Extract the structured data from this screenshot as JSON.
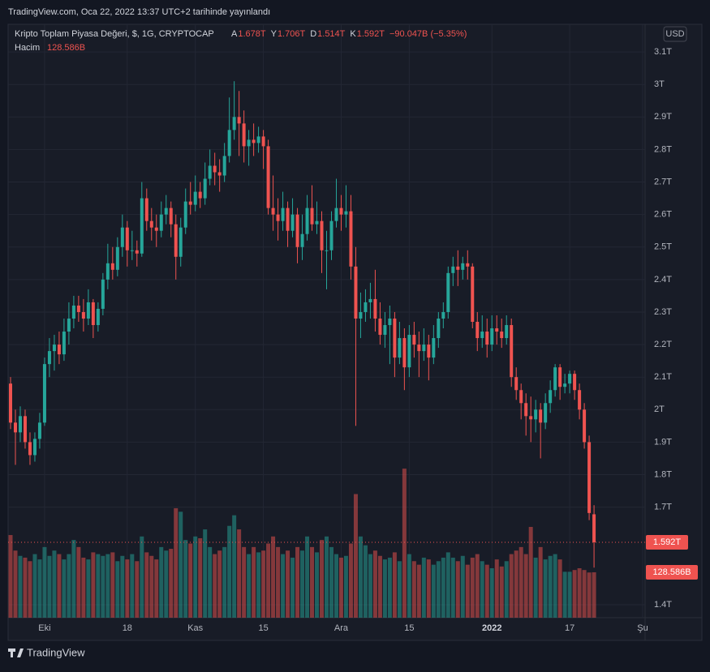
{
  "chart_data": {
    "type": "candlestick",
    "published": "TradingView.com, Oca 22, 2022 13:37 UTC+2 tarihinde yayınlandı",
    "title": "Kripto Toplam Piyasa Değeri, $, 1G, CRYPTOCAP",
    "header": [
      {
        "label": "A",
        "value": "1.678T"
      },
      {
        "label": "Y",
        "value": "1.706T"
      },
      {
        "label": "D",
        "value": "1.514T"
      },
      {
        "label": "K",
        "value": "1.592T"
      }
    ],
    "change": "−90.047B (−5.35%)",
    "volume_title": "Hacim",
    "last_labels": {
      "price": "1.592T",
      "volume": "128.586B"
    },
    "currency": "USD",
    "brand": "TradingView",
    "up_color": "#26a69a",
    "down_color": "#ef5350",
    "xlim": [
      -0.5,
      130.5
    ],
    "xticks": [
      {
        "value": 7,
        "label": "Eki"
      },
      {
        "value": 24,
        "label": "18"
      },
      {
        "value": 38,
        "label": "Kas"
      },
      {
        "value": 52,
        "label": "15"
      },
      {
        "value": 68,
        "label": "Ara"
      },
      {
        "value": 82,
        "label": "15"
      },
      {
        "value": 99,
        "label": "2022"
      },
      {
        "value": 115,
        "label": "17"
      },
      {
        "value": 130,
        "label": "Şu"
      }
    ],
    "ylim": [
      1.36,
      3.185
    ],
    "yticks": [
      {
        "value": 3.1,
        "label": "3.1T"
      },
      {
        "value": 3,
        "label": "3T"
      },
      {
        "value": 2.9,
        "label": "2.9T"
      },
      {
        "value": 2.8,
        "label": "2.8T"
      },
      {
        "value": 2.7,
        "label": "2.7T"
      },
      {
        "value": 2.6,
        "label": "2.6T"
      },
      {
        "value": 2.5,
        "label": "2.5T"
      },
      {
        "value": 2.4,
        "label": "2.4T"
      },
      {
        "value": 2.3,
        "label": "2.3T"
      },
      {
        "value": 2.2,
        "label": "2.2T"
      },
      {
        "value": 2.1,
        "label": "2.1T"
      },
      {
        "value": 2,
        "label": "2T"
      },
      {
        "value": 1.9,
        "label": "1.9T"
      },
      {
        "value": 1.8,
        "label": "1.8T"
      },
      {
        "value": 1.7,
        "label": "1.7T"
      },
      {
        "value": 1.4,
        "label": "1.4T"
      }
    ],
    "vlim": [
      0,
      1680
    ],
    "candles": [
      [
        2.08,
        2.1,
        1.94,
        1.96
      ],
      [
        1.96,
        2.0,
        1.83,
        1.93
      ],
      [
        1.93,
        2.01,
        1.9,
        1.98
      ],
      [
        1.98,
        2.0,
        1.88,
        1.9
      ],
      [
        1.9,
        1.93,
        1.83,
        1.86
      ],
      [
        1.86,
        1.93,
        1.84,
        1.91
      ],
      [
        1.91,
        1.99,
        1.88,
        1.96
      ],
      [
        1.96,
        2.16,
        1.95,
        2.14
      ],
      [
        2.14,
        2.22,
        2.1,
        2.18
      ],
      [
        2.18,
        2.23,
        2.12,
        2.2
      ],
      [
        2.2,
        2.24,
        2.14,
        2.17
      ],
      [
        2.17,
        2.28,
        2.15,
        2.24
      ],
      [
        2.24,
        2.33,
        2.2,
        2.28
      ],
      [
        2.28,
        2.35,
        2.25,
        2.32
      ],
      [
        2.32,
        2.35,
        2.27,
        2.3
      ],
      [
        2.3,
        2.34,
        2.24,
        2.28
      ],
      [
        2.28,
        2.37,
        2.26,
        2.33
      ],
      [
        2.33,
        2.34,
        2.22,
        2.26
      ],
      [
        2.26,
        2.33,
        2.24,
        2.31
      ],
      [
        2.31,
        2.42,
        2.29,
        2.4
      ],
      [
        2.4,
        2.51,
        2.37,
        2.45
      ],
      [
        2.45,
        2.5,
        2.4,
        2.43
      ],
      [
        2.43,
        2.53,
        2.41,
        2.5
      ],
      [
        2.5,
        2.6,
        2.47,
        2.56
      ],
      [
        2.56,
        2.58,
        2.44,
        2.49
      ],
      [
        2.49,
        2.55,
        2.46,
        2.49
      ],
      [
        2.49,
        2.52,
        2.44,
        2.48
      ],
      [
        2.48,
        2.7,
        2.47,
        2.65
      ],
      [
        2.65,
        2.68,
        2.55,
        2.58
      ],
      [
        2.58,
        2.62,
        2.52,
        2.56
      ],
      [
        2.56,
        2.6,
        2.5,
        2.55
      ],
      [
        2.55,
        2.64,
        2.53,
        2.6
      ],
      [
        2.6,
        2.66,
        2.57,
        2.62
      ],
      [
        2.62,
        2.64,
        2.53,
        2.57
      ],
      [
        2.57,
        2.6,
        2.4,
        2.47
      ],
      [
        2.47,
        2.59,
        2.44,
        2.56
      ],
      [
        2.56,
        2.68,
        2.54,
        2.64
      ],
      [
        2.64,
        2.7,
        2.6,
        2.63
      ],
      [
        2.63,
        2.72,
        2.61,
        2.67
      ],
      [
        2.67,
        2.7,
        2.62,
        2.65
      ],
      [
        2.65,
        2.76,
        2.63,
        2.71
      ],
      [
        2.71,
        2.8,
        2.69,
        2.75
      ],
      [
        2.75,
        2.79,
        2.69,
        2.73
      ],
      [
        2.73,
        2.77,
        2.67,
        2.72
      ],
      [
        2.72,
        2.82,
        2.7,
        2.78
      ],
      [
        2.78,
        2.96,
        2.76,
        2.86
      ],
      [
        2.86,
        3.01,
        2.83,
        2.9
      ],
      [
        2.9,
        2.98,
        2.78,
        2.88
      ],
      [
        2.88,
        2.92,
        2.76,
        2.81
      ],
      [
        2.81,
        2.86,
        2.75,
        2.83
      ],
      [
        2.83,
        2.88,
        2.78,
        2.82
      ],
      [
        2.82,
        2.87,
        2.79,
        2.84
      ],
      [
        2.84,
        2.86,
        2.74,
        2.81
      ],
      [
        2.81,
        2.83,
        2.6,
        2.62
      ],
      [
        2.62,
        2.72,
        2.55,
        2.6
      ],
      [
        2.6,
        2.65,
        2.52,
        2.58
      ],
      [
        2.58,
        2.67,
        2.55,
        2.62
      ],
      [
        2.62,
        2.64,
        2.5,
        2.55
      ],
      [
        2.55,
        2.65,
        2.53,
        2.6
      ],
      [
        2.6,
        2.62,
        2.45,
        2.5
      ],
      [
        2.5,
        2.6,
        2.46,
        2.54
      ],
      [
        2.54,
        2.66,
        2.52,
        2.62
      ],
      [
        2.62,
        2.69,
        2.55,
        2.57
      ],
      [
        2.57,
        2.64,
        2.54,
        2.58
      ],
      [
        2.58,
        2.61,
        2.42,
        2.49
      ],
      [
        2.49,
        2.55,
        2.37,
        2.49
      ],
      [
        2.49,
        2.61,
        2.46,
        2.58
      ],
      [
        2.58,
        2.71,
        2.56,
        2.62
      ],
      [
        2.62,
        2.66,
        2.55,
        2.6
      ],
      [
        2.6,
        2.69,
        2.56,
        2.61
      ],
      [
        2.61,
        2.66,
        2.4,
        2.44
      ],
      [
        2.44,
        2.5,
        1.95,
        2.28
      ],
      [
        2.28,
        2.36,
        2.22,
        2.3
      ],
      [
        2.3,
        2.37,
        2.27,
        2.33
      ],
      [
        2.33,
        2.39,
        2.28,
        2.34
      ],
      [
        2.34,
        2.43,
        2.24,
        2.28
      ],
      [
        2.28,
        2.33,
        2.2,
        2.23
      ],
      [
        2.23,
        2.3,
        2.19,
        2.26
      ],
      [
        2.26,
        2.32,
        2.14,
        2.28
      ],
      [
        2.28,
        2.3,
        2.1,
        2.16
      ],
      [
        2.16,
        2.27,
        2.14,
        2.22
      ],
      [
        2.22,
        2.25,
        2.06,
        2.13
      ],
      [
        2.13,
        2.26,
        2.1,
        2.23
      ],
      [
        2.23,
        2.27,
        2.16,
        2.2
      ],
      [
        2.2,
        2.24,
        2.1,
        2.18
      ],
      [
        2.18,
        2.25,
        2.15,
        2.2
      ],
      [
        2.2,
        2.23,
        2.09,
        2.16
      ],
      [
        2.16,
        2.26,
        2.14,
        2.22
      ],
      [
        2.22,
        2.3,
        2.19,
        2.28
      ],
      [
        2.28,
        2.33,
        2.25,
        2.3
      ],
      [
        2.3,
        2.44,
        2.28,
        2.42
      ],
      [
        2.42,
        2.47,
        2.38,
        2.44
      ],
      [
        2.44,
        2.49,
        2.38,
        2.43
      ],
      [
        2.43,
        2.47,
        2.4,
        2.45
      ],
      [
        2.45,
        2.49,
        2.4,
        2.44
      ],
      [
        2.44,
        2.45,
        2.25,
        2.27
      ],
      [
        2.27,
        2.3,
        2.18,
        2.22
      ],
      [
        2.22,
        2.29,
        2.19,
        2.24
      ],
      [
        2.24,
        2.28,
        2.16,
        2.2
      ],
      [
        2.2,
        2.29,
        2.18,
        2.25
      ],
      [
        2.25,
        2.29,
        2.2,
        2.24
      ],
      [
        2.24,
        2.28,
        2.19,
        2.22
      ],
      [
        2.22,
        2.29,
        2.2,
        2.26
      ],
      [
        2.26,
        2.28,
        2.07,
        2.1
      ],
      [
        2.1,
        2.13,
        2.03,
        2.06
      ],
      [
        2.06,
        2.08,
        1.97,
        2.02
      ],
      [
        2.02,
        2.05,
        1.92,
        1.98
      ],
      [
        1.98,
        2.04,
        1.9,
        1.97
      ],
      [
        1.97,
        2.03,
        1.93,
        2.0
      ],
      [
        2.0,
        2.02,
        1.85,
        1.96
      ],
      [
        1.96,
        2.05,
        1.94,
        2.02
      ],
      [
        2.02,
        2.09,
        1.99,
        2.06
      ],
      [
        2.06,
        2.14,
        2.04,
        2.13
      ],
      [
        2.13,
        2.14,
        2.03,
        2.07
      ],
      [
        2.07,
        2.11,
        2.05,
        2.08
      ],
      [
        2.08,
        2.12,
        2.05,
        2.11
      ],
      [
        2.11,
        2.12,
        2.03,
        2.06
      ],
      [
        2.06,
        2.08,
        1.97,
        2.0
      ],
      [
        2.0,
        2.02,
        1.88,
        1.9
      ],
      [
        1.9,
        1.92,
        1.66,
        1.682
      ],
      [
        1.678,
        1.706,
        1.514,
        1.592
      ]
    ],
    "volume": [
      234,
      190,
      175,
      170,
      160,
      180,
      165,
      200,
      175,
      190,
      180,
      165,
      180,
      220,
      200,
      170,
      165,
      185,
      180,
      175,
      180,
      185,
      160,
      175,
      165,
      180,
      160,
      230,
      185,
      175,
      165,
      200,
      190,
      195,
      310,
      300,
      220,
      210,
      230,
      225,
      250,
      200,
      180,
      190,
      200,
      260,
      290,
      250,
      200,
      180,
      200,
      185,
      190,
      210,
      230,
      200,
      180,
      190,
      170,
      200,
      190,
      230,
      200,
      185,
      220,
      230,
      200,
      180,
      170,
      175,
      210,
      350,
      230,
      205,
      180,
      190,
      175,
      165,
      170,
      185,
      160,
      422,
      180,
      160,
      150,
      170,
      165,
      150,
      160,
      170,
      185,
      170,
      160,
      175,
      150,
      170,
      180,
      160,
      150,
      140,
      165,
      145,
      160,
      180,
      190,
      200,
      180,
      257,
      170,
      200,
      165,
      175,
      180,
      165,
      130,
      130,
      135,
      140,
      135,
      128,
      128.586
    ]
  }
}
